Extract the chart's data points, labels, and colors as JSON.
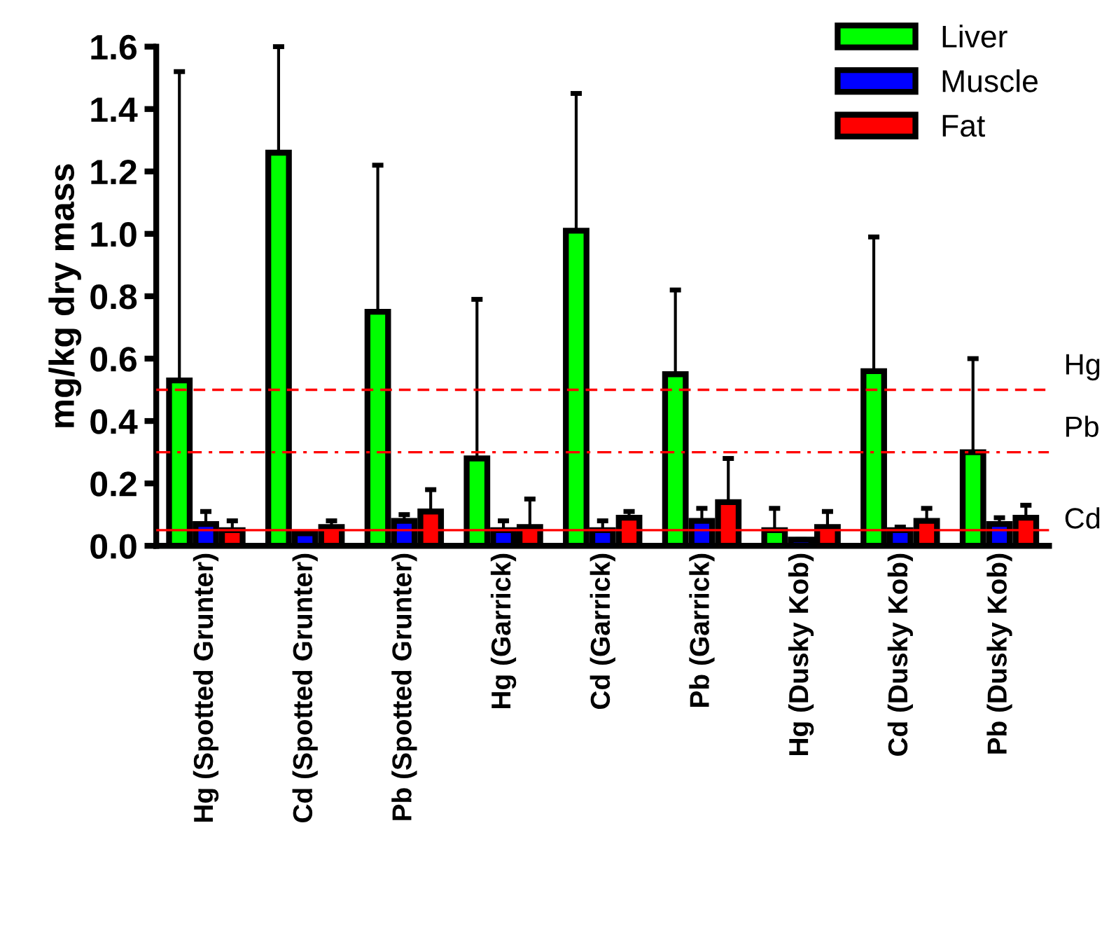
{
  "chart_data": {
    "type": "bar",
    "ylabel": "mg/kg dry mass",
    "categories": [
      "Hg (Spotted Grunter)",
      "Cd (Spotted Grunter)",
      "Pb (Spotted Grunter)",
      "Hg (Garrick)",
      "Cd (Garrick)",
      "Pb (Garrick)",
      "Hg (Dusky Kob)",
      "Cd (Dusky Kob)",
      "Pb (Dusky Kob)"
    ],
    "series": [
      {
        "name": "Liver",
        "color": "#00ff00",
        "values": [
          0.53,
          1.26,
          0.75,
          0.28,
          1.01,
          0.55,
          0.05,
          0.56,
          0.3
        ],
        "errors": [
          [
            0.53,
            1.52
          ],
          [
            1.26,
            1.6
          ],
          [
            0.75,
            1.22
          ],
          [
            0.28,
            0.79
          ],
          [
            1.01,
            1.45
          ],
          [
            0.55,
            0.82
          ],
          [
            0.05,
            0.12
          ],
          [
            0.56,
            0.99
          ],
          [
            0.3,
            0.6
          ]
        ]
      },
      {
        "name": "Muscle",
        "color": "#0000ff",
        "values": [
          0.07,
          0.04,
          0.08,
          0.05,
          0.05,
          0.08,
          0.02,
          0.05,
          0.07
        ],
        "errors": [
          [
            0.07,
            0.11
          ],
          [
            0.04,
            0.04
          ],
          [
            0.08,
            0.1
          ],
          [
            0.05,
            0.08
          ],
          [
            0.05,
            0.08
          ],
          [
            0.08,
            0.12
          ],
          [
            0.02,
            0.02
          ],
          [
            0.05,
            0.06
          ],
          [
            0.07,
            0.09
          ]
        ]
      },
      {
        "name": "Fat",
        "color": "#ff0000",
        "values": [
          0.05,
          0.06,
          0.11,
          0.06,
          0.09,
          0.14,
          0.06,
          0.08,
          0.09
        ],
        "errors": [
          [
            0.05,
            0.08
          ],
          [
            0.06,
            0.08
          ],
          [
            0.11,
            0.18
          ],
          [
            0.06,
            0.15
          ],
          [
            0.09,
            0.11
          ],
          [
            0.14,
            0.28
          ],
          [
            0.06,
            0.11
          ],
          [
            0.08,
            0.12
          ],
          [
            0.09,
            0.13
          ]
        ]
      }
    ],
    "ylim": [
      0,
      1.6
    ],
    "yticks": [
      {
        "value": 0,
        "label": "0.0"
      },
      0.2,
      0.4,
      0.6,
      0.8,
      {
        "value": 1,
        "label": "1.0"
      },
      1.2,
      1.4,
      1.6
    ],
    "ref_lines": [
      {
        "axis": "y",
        "value": 0.5,
        "label": "Hg",
        "color": "#ff0000",
        "line_style": "dashed"
      },
      {
        "axis": "y",
        "value": 0.3,
        "label": "Pb",
        "color": "#ff0000",
        "line_style": "dashdot"
      },
      {
        "axis": "y",
        "value": 0.05,
        "label": "Cd",
        "color": "#ff0000",
        "line_style": "solid"
      }
    ],
    "legend": "top right",
    "grid": false
  }
}
